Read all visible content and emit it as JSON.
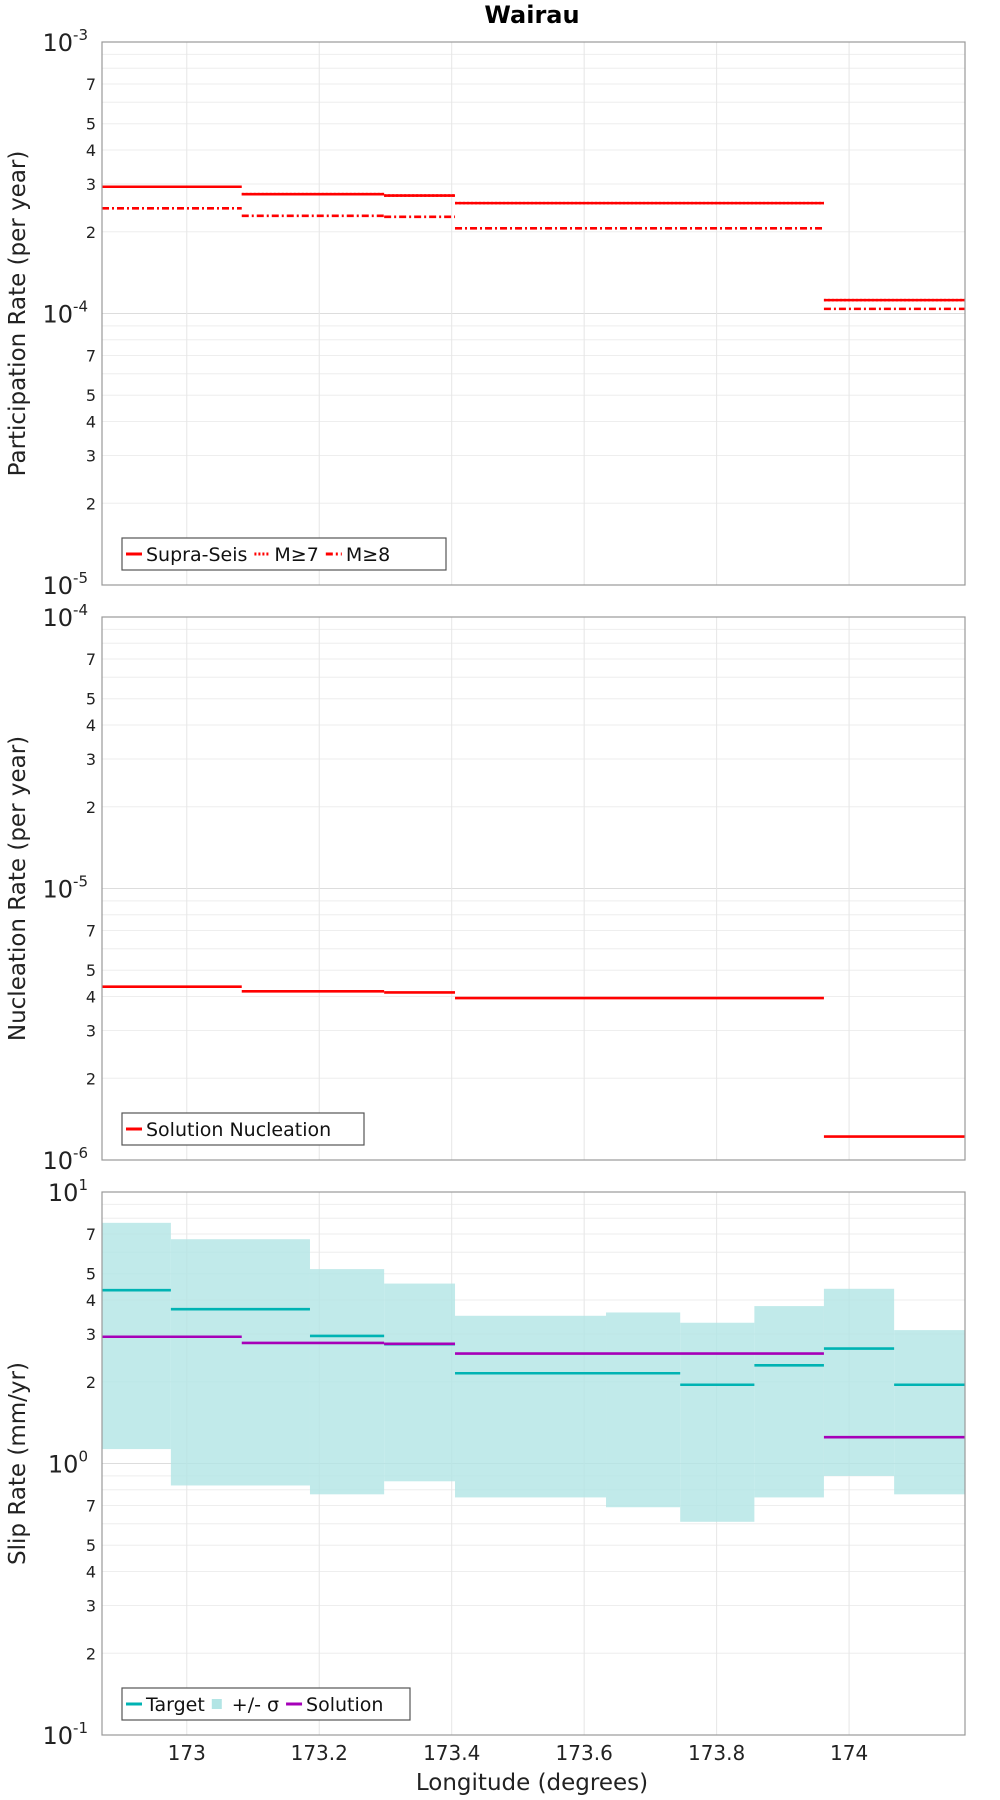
{
  "title": "Wairau",
  "xlabel": "Longitude (degrees)",
  "chart_data": [
    {
      "type": "line",
      "title": "Wairau",
      "xlabel": "",
      "ylabel": "Participation Rate (per year)",
      "yscale": "log",
      "xlim": [
        172.872,
        174.175
      ],
      "ylim": [
        1e-05,
        0.001
      ],
      "grid": true,
      "legend_position": "bottom-left",
      "x_ticks": [
        "173",
        "173.2",
        "173.4",
        "173.6",
        "173.8",
        "174"
      ],
      "x_tick_values": [
        173,
        173.2,
        173.4,
        173.6,
        173.8,
        174
      ],
      "y_major_ticks": [
        {
          "base": "10",
          "exp": "-5"
        },
        {
          "base": "10",
          "exp": "-4"
        },
        {
          "base": "10",
          "exp": "-3"
        }
      ],
      "y_minor_labels": [
        "2",
        "3",
        "4",
        "5",
        "7"
      ],
      "series": [
        {
          "name": "Supra-Seis",
          "color": "#ff0000",
          "dash": "solid",
          "segments": [
            [
              172.872,
              173.083,
              0.000293
            ],
            [
              173.083,
              173.298,
              0.000275
            ],
            [
              173.298,
              173.405,
              0.000272
            ],
            [
              173.405,
              173.962,
              0.000255
            ],
            [
              173.962,
              174.175,
              0.000112
            ]
          ]
        },
        {
          "name": "M≥7",
          "color": "#ff0000",
          "dash": "dotted",
          "segments": [
            [
              172.872,
              173.083,
              0.000293
            ],
            [
              173.083,
              173.298,
              0.000275
            ],
            [
              173.298,
              173.405,
              0.000272
            ],
            [
              173.405,
              173.962,
              0.000255
            ],
            [
              173.962,
              174.175,
              0.000112
            ]
          ]
        },
        {
          "name": "M≥8",
          "color": "#ff0000",
          "dash": "dashdot",
          "segments": [
            [
              172.872,
              173.083,
              0.000244
            ],
            [
              173.083,
              173.298,
              0.000229
            ],
            [
              173.298,
              173.405,
              0.000227
            ],
            [
              173.405,
              173.962,
              0.000206
            ],
            [
              173.962,
              174.175,
              0.000104
            ]
          ]
        }
      ]
    },
    {
      "type": "line",
      "title": "",
      "xlabel": "",
      "ylabel": "Nucleation Rate (per year)",
      "yscale": "log",
      "xlim": [
        172.872,
        174.175
      ],
      "ylim": [
        1e-06,
        0.0001
      ],
      "grid": true,
      "legend_position": "bottom-left",
      "x_ticks": [
        "173",
        "173.2",
        "173.4",
        "173.6",
        "173.8",
        "174"
      ],
      "x_tick_values": [
        173,
        173.2,
        173.4,
        173.6,
        173.8,
        174
      ],
      "y_major_ticks": [
        {
          "base": "10",
          "exp": "-6"
        },
        {
          "base": "10",
          "exp": "-5"
        },
        {
          "base": "10",
          "exp": "-4"
        }
      ],
      "y_minor_labels": [
        "2",
        "3",
        "4",
        "5",
        "7"
      ],
      "series": [
        {
          "name": "Solution Nucleation",
          "color": "#ff0000",
          "dash": "solid",
          "segments": [
            [
              172.872,
              173.083,
              4.35e-06
            ],
            [
              173.083,
              173.298,
              4.18e-06
            ],
            [
              173.298,
              173.405,
              4.14e-06
            ],
            [
              173.405,
              173.962,
              3.95e-06
            ],
            [
              173.962,
              174.175,
              1.22e-06
            ]
          ]
        }
      ]
    },
    {
      "type": "line",
      "title": "",
      "xlabel": "Longitude (degrees)",
      "ylabel": "Slip Rate (mm/yr)",
      "yscale": "log",
      "xlim": [
        172.872,
        174.175
      ],
      "ylim": [
        0.1,
        10
      ],
      "grid": true,
      "legend_position": "bottom-left",
      "x_ticks": [
        "173",
        "173.2",
        "173.4",
        "173.6",
        "173.8",
        "174"
      ],
      "x_tick_values": [
        173,
        173.2,
        173.4,
        173.6,
        173.8,
        174
      ],
      "y_major_ticks": [
        {
          "base": "10",
          "exp": "-1"
        },
        {
          "base": "10",
          "exp": "0"
        },
        {
          "base": "10",
          "exp": "1"
        }
      ],
      "y_minor_labels": [
        "2",
        "3",
        "4",
        "5",
        "7"
      ],
      "band": {
        "name": "+/- σ",
        "color": "#b2e5e5",
        "segments": [
          [
            172.872,
            172.976,
            1.13,
            7.7
          ],
          [
            172.976,
            173.186,
            0.83,
            6.7
          ],
          [
            173.186,
            173.298,
            0.77,
            5.2
          ],
          [
            173.298,
            173.405,
            0.86,
            4.6
          ],
          [
            173.405,
            173.633,
            0.75,
            3.5
          ],
          [
            173.633,
            173.745,
            0.69,
            3.6
          ],
          [
            173.745,
            173.857,
            0.61,
            3.3
          ],
          [
            173.857,
            173.962,
            0.75,
            3.8
          ],
          [
            173.962,
            174.068,
            0.9,
            4.4
          ],
          [
            174.068,
            174.175,
            0.77,
            3.1
          ]
        ]
      },
      "series": [
        {
          "name": "Target",
          "color": "#00b3b3",
          "dash": "solid",
          "segments": [
            [
              172.872,
              172.976,
              4.35
            ],
            [
              172.976,
              173.186,
              3.7
            ],
            [
              173.186,
              173.298,
              2.95
            ],
            [
              173.298,
              173.405,
              2.75
            ],
            [
              173.405,
              173.745,
              2.15
            ],
            [
              173.745,
              173.857,
              1.95
            ],
            [
              173.857,
              173.962,
              2.3
            ],
            [
              173.962,
              174.068,
              2.65
            ],
            [
              174.068,
              174.175,
              1.95
            ]
          ]
        },
        {
          "name": "Solution",
          "color": "#a600b8",
          "dash": "solid",
          "segments": [
            [
              172.872,
              173.083,
              2.93
            ],
            [
              173.083,
              173.298,
              2.78
            ],
            [
              173.298,
              173.405,
              2.76
            ],
            [
              173.405,
              173.962,
              2.54
            ],
            [
              173.962,
              174.175,
              1.25
            ]
          ]
        }
      ]
    }
  ]
}
